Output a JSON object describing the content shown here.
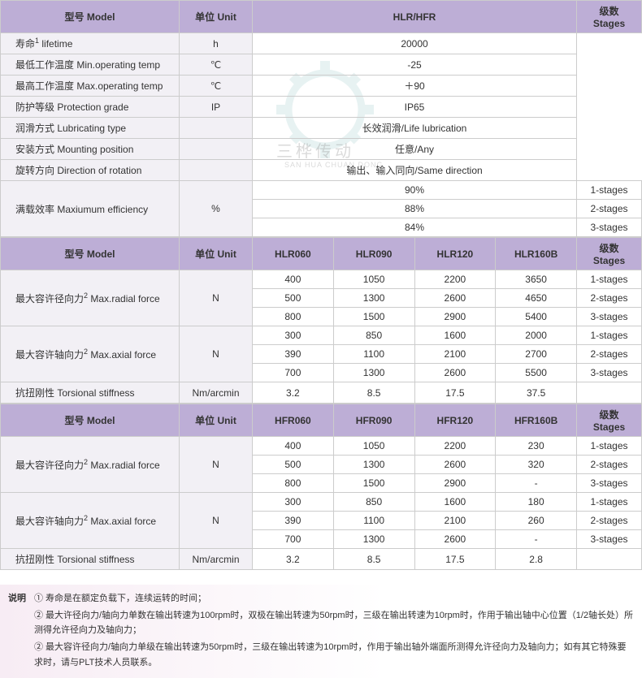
{
  "colors": {
    "header_bg": "#bdaed6",
    "label_bg": "#f2f0f5",
    "border": "#cccccc",
    "text": "#333333",
    "notes_bg_start": "#f7ecf4"
  },
  "table1": {
    "h_model": "型号 Model",
    "h_unit": "单位 Unit",
    "h_series": "HLR/HFR",
    "h_stages": "级数\nStages",
    "rows": [
      {
        "label": "寿命<sup>1</sup> lifetime",
        "unit": "h",
        "val": "20000"
      },
      {
        "label": "最低工作温度 Min.operating temp",
        "unit": "℃",
        "val": "-25"
      },
      {
        "label": "最高工作温度 Max.operating temp",
        "unit": "℃",
        "val": "＋90"
      },
      {
        "label": "防护等级 Protection grade",
        "unit": "IP",
        "val": "IP65"
      },
      {
        "label": "润滑方式 Lubricating type",
        "unit": "",
        "val": "长效润滑/Life lubrication"
      },
      {
        "label": "安装方式 Mounting position",
        "unit": "",
        "val": "任意/Any"
      },
      {
        "label": "旋转方向 Direction of rotation",
        "unit": "",
        "val": "输出、输入同向/Same direction"
      }
    ],
    "eff": {
      "label": "满载效率 Maxiumum efficiency",
      "unit": "%",
      "vals": [
        "90%",
        "88%",
        "84%"
      ],
      "stages": [
        "1-stages",
        "2-stages",
        "3-stages"
      ]
    }
  },
  "table2": {
    "h_model": "型号 Model",
    "h_unit": "单位 Unit",
    "cols": [
      "HLR060",
      "HLR090",
      "HLR120",
      "HLR160B"
    ],
    "h_stages": "级数\nStages",
    "radial": {
      "label": "最大容许径向力<sup>2</sup> Max.radial force",
      "unit": "N",
      "rows": [
        [
          "400",
          "1050",
          "2200",
          "3650",
          "1-stages"
        ],
        [
          "500",
          "1300",
          "2600",
          "4650",
          "2-stages"
        ],
        [
          "800",
          "1500",
          "2900",
          "5400",
          "3-stages"
        ]
      ]
    },
    "axial": {
      "label": "最大容许轴向力<sup>2</sup> Max.axial force",
      "unit": "N",
      "rows": [
        [
          "300",
          "850",
          "1600",
          "2000",
          "1-stages"
        ],
        [
          "390",
          "1100",
          "2100",
          "2700",
          "2-stages"
        ],
        [
          "700",
          "1300",
          "2600",
          "5500",
          "3-stages"
        ]
      ]
    },
    "torsion": {
      "label": "抗扭刚性 Torsional stiffness",
      "unit": "Nm/arcmin",
      "vals": [
        "3.2",
        "8.5",
        "17.5",
        "37.5"
      ]
    }
  },
  "table3": {
    "h_model": "型号 Model",
    "h_unit": "单位 Unit",
    "cols": [
      "HFR060",
      "HFR090",
      "HFR120",
      "HFR160B"
    ],
    "h_stages": "级数\nStages",
    "radial": {
      "label": "最大容许径向力<sup>2</sup> Max.radial force",
      "unit": "N",
      "rows": [
        [
          "400",
          "1050",
          "2200",
          "230",
          "1-stages"
        ],
        [
          "500",
          "1300",
          "2600",
          "320",
          "2-stages"
        ],
        [
          "800",
          "1500",
          "2900",
          "-",
          "3-stages"
        ]
      ]
    },
    "axial": {
      "label": "最大容许轴向力<sup>2</sup> Max.axial force",
      "unit": "N",
      "rows": [
        [
          "300",
          "850",
          "1600",
          "180",
          "1-stages"
        ],
        [
          "390",
          "1100",
          "2100",
          "260",
          "2-stages"
        ],
        [
          "700",
          "1300",
          "2600",
          "-",
          "3-stages"
        ]
      ]
    },
    "torsion": {
      "label": "抗扭刚性 Torsional stiffness",
      "unit": "Nm/arcmin",
      "vals": [
        "3.2",
        "8.5",
        "17.5",
        "2.8"
      ]
    }
  },
  "notes": {
    "title": "说明",
    "lines": [
      "① 寿命是在额定负载下，连续运转的时间；",
      "② 最大许径向力/轴向力单数在输出转速为100rpm时，双极在输出转速为50rpm时，三级在输出转速为10rpm时，作用于输出轴中心位置（1/2轴长处）所测得允许径向力及轴向力；",
      "② 最大容许径向力/轴向力单级在输出转速为50rpm时，三级在输出转速为10rpm时，作用于输出轴外端面所测得允许径向力及轴向力；如有其它特殊要求时，请与PLT技术人员联系。"
    ]
  },
  "watermark": {
    "text": "三桦传动",
    "sub": "SAN HUA CHUAN DONG"
  }
}
